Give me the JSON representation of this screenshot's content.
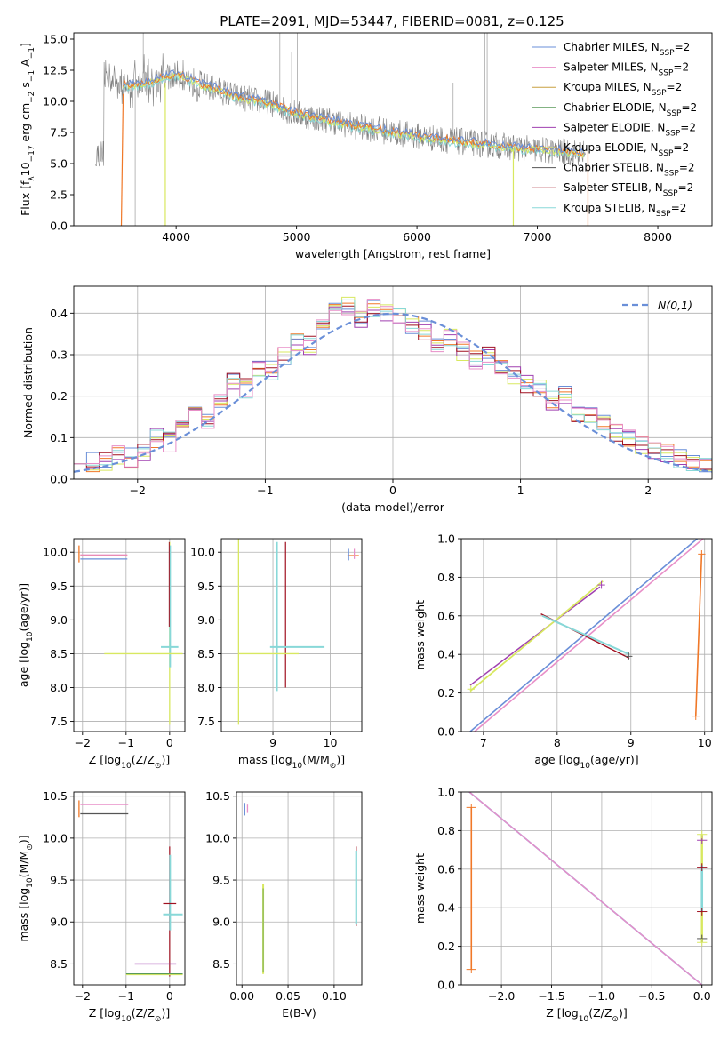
{
  "figure_title": "PLATE=2091, MJD=53447, FIBERID=0081, z=0.125",
  "colors": {
    "Chabrier MILES": "#6a8fd8",
    "Salpeter MILES": "#e88fc8",
    "Kroupa MILES": "#c8a040",
    "Chabrier ELODIE": "#5a9a5a",
    "Salpeter ELODIE": "#a040b0",
    "Kroupa ELODIE": "#d8e860",
    "Chabrier STELIB": "#555555",
    "Salpeter STELIB": "#a01020",
    "Kroupa STELIB": "#88d8d8",
    "data": "#808080",
    "normal": "#6a8fd8",
    "orange": "#f07828"
  },
  "chart_data": [
    {
      "id": "spectrum",
      "type": "line",
      "xlabel": "wavelength [Angstrom, rest frame]",
      "ylabel_parts": [
        "Flux [f",
        "λ",
        "10",
        "−17",
        " erg cm",
        "−2",
        " s",
        "−1",
        " A",
        "−1",
        "]"
      ],
      "xlim": [
        3150,
        8450
      ],
      "ylim": [
        0,
        15.5
      ],
      "xticks": [
        4000,
        5000,
        6000,
        7000,
        8000
      ],
      "yticks": [
        0.0,
        2.5,
        5.0,
        7.5,
        10.0,
        12.5,
        15.0
      ],
      "grid": false,
      "legend_position": "top-right",
      "legend": [
        "Chabrier MILES, N_SSP=2",
        "Salpeter MILES, N_SSP=2",
        "Kroupa MILES, N_SSP=2",
        "Chabrier ELODIE, N_SSP=2",
        "Salpeter ELODIE, N_SSP=2",
        "Kroupa ELODIE, N_SSP=2",
        "Chabrier STELIB, N_SSP=2",
        "Salpeter STELIB, N_SSP=2",
        "Kroupa STELIB, N_SSP=2"
      ],
      "legend_labels": [
        {
          "base": "Chabrier MILES, N",
          "sub": "SSP",
          "tail": "=2"
        },
        {
          "base": "Salpeter MILES, N",
          "sub": "SSP",
          "tail": "=2"
        },
        {
          "base": "Kroupa MILES, N",
          "sub": "SSP",
          "tail": "=2"
        },
        {
          "base": "Chabrier ELODIE, N",
          "sub": "SSP",
          "tail": "=2"
        },
        {
          "base": "Salpeter ELODIE, N",
          "sub": "SSP",
          "tail": "=2"
        },
        {
          "base": "Kroupa ELODIE, N",
          "sub": "SSP",
          "tail": "=2"
        },
        {
          "base": "Chabrier STELIB, N",
          "sub": "SSP",
          "tail": "=2"
        },
        {
          "base": "Salpeter STELIB, N",
          "sub": "SSP",
          "tail": "=2"
        },
        {
          "base": "Kroupa STELIB, N",
          "sub": "SSP",
          "tail": "=2"
        }
      ],
      "continuum": [
        [
          3400,
          12.3
        ],
        [
          3600,
          11.2
        ],
        [
          3800,
          11.6
        ],
        [
          4000,
          12.2
        ],
        [
          4200,
          11.4
        ],
        [
          4500,
          10.4
        ],
        [
          4800,
          9.8
        ],
        [
          5000,
          9.0
        ],
        [
          5500,
          8.0
        ],
        [
          6000,
          7.2
        ],
        [
          6500,
          6.6
        ],
        [
          7000,
          6.1
        ],
        [
          7400,
          5.8
        ]
      ],
      "model_start": 3560,
      "model_end": 7390,
      "data_start": 3330,
      "data_end": 7400,
      "dropouts": [
        {
          "series": "Chabrier MILES",
          "from": 3540,
          "to": 3560
        },
        {
          "series": "Kroupa ELODIE",
          "at": 3910
        },
        {
          "series": "Kroupa ELODIE",
          "at": 6800
        },
        {
          "series": "Salpeter STELIB",
          "at": 7420
        }
      ]
    },
    {
      "id": "residual-hist",
      "type": "step",
      "xlabel": "(data-model)/error",
      "ylabel": "Normed distribution",
      "xlim": [
        -2.5,
        2.5
      ],
      "ylim": [
        0,
        0.465
      ],
      "xticks": [
        -2,
        -1,
        0,
        1,
        2
      ],
      "yticks": [
        0.0,
        0.1,
        0.2,
        0.3,
        0.4
      ],
      "grid": true,
      "legend_position": "top-right",
      "legend": [
        "N(0,1)"
      ],
      "bin_edges_start": -2.5,
      "bin_width": 0.1,
      "values": [
        0.06,
        0.04,
        0.04,
        0.06,
        0.05,
        0.06,
        0.1,
        0.09,
        0.12,
        0.15,
        0.14,
        0.18,
        0.23,
        0.22,
        0.27,
        0.26,
        0.3,
        0.33,
        0.32,
        0.36,
        0.4,
        0.42,
        0.38,
        0.41,
        0.4,
        0.39,
        0.37,
        0.36,
        0.33,
        0.34,
        0.31,
        0.29,
        0.3,
        0.27,
        0.25,
        0.23,
        0.22,
        0.19,
        0.2,
        0.16,
        0.15,
        0.13,
        0.11,
        0.1,
        0.08,
        0.07,
        0.06,
        0.05,
        0.04,
        0.03
      ]
    },
    {
      "id": "age-vs-z",
      "type": "errorbar",
      "xlabel_parts": [
        "Z [log",
        "10",
        "(Z/Z",
        "⊙",
        ")]"
      ],
      "ylabel_parts": [
        "age  [log",
        "10",
        "(age/yr)]"
      ],
      "xlim": [
        -2.2,
        0.35
      ],
      "ylim": [
        7.35,
        10.2
      ],
      "xticks": [
        -2,
        -1,
        0
      ],
      "yticks": [
        7.5,
        8.0,
        8.5,
        9.0,
        9.5,
        10.0
      ],
      "grid": true
    },
    {
      "id": "age-vs-mass",
      "type": "errorbar",
      "xlabel_parts": [
        "mass [log",
        "10",
        "(M/M",
        "⊙",
        ")]"
      ],
      "xlim": [
        8.1,
        10.55
      ],
      "ylim": [
        7.35,
        10.2
      ],
      "xticks": [
        9,
        10
      ],
      "yticks": [
        7.5,
        8.0,
        8.5,
        9.0,
        9.5,
        10.0
      ],
      "grid": true
    },
    {
      "id": "weight-vs-age",
      "type": "line",
      "xlabel_parts": [
        "age  [log",
        "10",
        "(age/yr)]"
      ],
      "ylabel": "mass weight",
      "xlim": [
        6.7,
        10.1
      ],
      "ylim": [
        0,
        1
      ],
      "xticks": [
        7,
        8,
        9,
        10
      ],
      "yticks": [
        0.0,
        0.2,
        0.4,
        0.6,
        0.8,
        1.0
      ],
      "grid": true
    },
    {
      "id": "mass-vs-z",
      "type": "errorbar",
      "xlabel_parts": [
        "Z [log",
        "10",
        "(Z/Z",
        "⊙",
        ")]"
      ],
      "ylabel_parts": [
        "mass [log",
        "10",
        "(M/M",
        "⊙",
        ")]"
      ],
      "xlim": [
        -2.2,
        0.35
      ],
      "ylim": [
        8.25,
        10.55
      ],
      "xticks": [
        -2,
        -1,
        0
      ],
      "yticks": [
        8.5,
        9.0,
        9.5,
        10.0,
        10.5
      ],
      "grid": true
    },
    {
      "id": "mass-vs-ebv",
      "type": "errorbar",
      "xlabel": "E(B-V)",
      "xlim": [
        -0.006,
        0.13
      ],
      "ylim": [
        8.25,
        10.55
      ],
      "xticks": [
        0.0,
        0.05,
        0.1
      ],
      "xtick_labels": [
        "0.00",
        "0.05",
        "0.10"
      ],
      "yticks": [
        8.5,
        9.0,
        9.5,
        10.0,
        10.5
      ],
      "grid": true
    },
    {
      "id": "weight-vs-z",
      "type": "line",
      "xlabel_parts": [
        "Z [log",
        "10",
        "(Z/Z",
        "⊙",
        ")]"
      ],
      "ylabel": "mass weight",
      "xlim": [
        -2.4,
        0.1
      ],
      "ylim": [
        0,
        1
      ],
      "xticks": [
        -2.0,
        -1.5,
        -1.0,
        -0.5,
        0.0
      ],
      "yticks": [
        0.0,
        0.2,
        0.4,
        0.6,
        0.8,
        1.0
      ],
      "grid": true
    }
  ]
}
